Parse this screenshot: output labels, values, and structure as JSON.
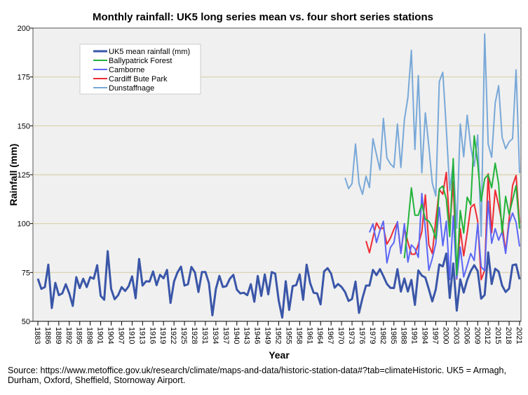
{
  "chart_data": {
    "type": "line",
    "title": "Monthly rainfall: UK5 long series mean vs. four short series stations",
    "xlabel": "Year",
    "ylabel": "Rainfall (mm)",
    "xlim": [
      1883,
      2021
    ],
    "ylim": [
      50,
      200
    ],
    "yticks": [
      50,
      75,
      100,
      125,
      150,
      175,
      200
    ],
    "xtick_start": 1883,
    "xtick_step": 3,
    "xtick_end": 2021,
    "grid": true,
    "legend_position": "top-left",
    "series": [
      {
        "name": "UK5 mean rainfall (mm)",
        "color": "#3a56a8",
        "start": 1883,
        "values": [
          71.8,
          66.6,
          67.5,
          79,
          56.8,
          69.7,
          63.4,
          64.3,
          69,
          64.3,
          57.9,
          72.6,
          67,
          71.8,
          67.5,
          72.6,
          71.8,
          78.7,
          63,
          61,
          85.9,
          66.6,
          61.3,
          63.4,
          67.5,
          65.5,
          67.9,
          73,
          61.8,
          81.9,
          68.3,
          70.5,
          70.4,
          75.5,
          68.5,
          73.8,
          72,
          76.3,
          59.4,
          70.4,
          75,
          78,
          68.3,
          69,
          77.8,
          75,
          65,
          75.2,
          75.2,
          69.6,
          53.1,
          66.6,
          73.2,
          67.6,
          68,
          71.8,
          73.8,
          66.2,
          64.3,
          64.6,
          63.4,
          69,
          60,
          73.2,
          63,
          74,
          63.8,
          75.2,
          74.4,
          60.6,
          51.9,
          70.5,
          55.8,
          68,
          68.5,
          74,
          61,
          79,
          69.6,
          64.6,
          64.3,
          58.7,
          75.5,
          77.2,
          74.4,
          67.2,
          69.1,
          67.6,
          65,
          60.4,
          61.4,
          70.3,
          54.3,
          62,
          68.3,
          68.3,
          76.3,
          73.6,
          76.7,
          73.1,
          69.1,
          67.1,
          67,
          76.7,
          65.2,
          71.9,
          65.2,
          71.2,
          58.4,
          76,
          73.4,
          72.4,
          66.4,
          60.2,
          66.4,
          79.1,
          78.1,
          84.7,
          62,
          79.6,
          55.5,
          71.5,
          64.7,
          71.2,
          75.7,
          78.7,
          75.7,
          61.6,
          63.5,
          85.3,
          69.1,
          76.9,
          75.5,
          68.3,
          65,
          66.8,
          78.7,
          79.1,
          71.5
        ]
      },
      {
        "name": "Ballypatrick Forest",
        "color": "#22b33a",
        "start": 1988,
        "values": [
          82.3,
          99.4,
          118.3,
          104.3,
          104.3,
          109.9,
          102.2,
          101.2,
          97.9,
          92.2,
          117.7,
          119.2,
          112.6,
          93.4,
          133.2,
          73.7,
          106.7,
          95.1,
          113.5,
          109.6,
          144.9,
          130.5,
          111.4,
          123,
          125,
          118.3,
          130.9,
          120.4,
          95.3,
          113.9,
          104.7,
          112.1,
          119.4,
          97.4
        ]
      },
      {
        "name": "Camborne",
        "color": "#5b66f5",
        "start": 1978,
        "values": [
          95.5,
          99.8,
          90.3,
          96.5,
          101.2,
          79.9,
          87.8,
          90.3,
          101,
          84.7,
          100,
          80.3,
          89.1,
          87.2,
          82.7,
          115.4,
          97.4,
          76.1,
          82.1,
          89.9,
          108.2,
          88.7,
          101.2,
          71.3,
          103.9,
          71.9,
          88,
          72.7,
          78.5,
          84.7,
          81.1,
          100,
          77.9,
          75.9,
          111.4,
          89.9,
          97.4,
          91.5,
          95.9,
          84.7,
          100,
          105.4,
          100.6,
          88.3
        ]
      },
      {
        "name": "Cardiff Bute Park",
        "color": "#ee2a33",
        "start": 1977,
        "values": [
          91.1,
          85.1,
          92.9,
          100.3,
          97.1,
          97.9,
          89.5,
          92.6,
          97.1,
          100.7,
          85.1,
          97.9,
          90.5,
          84.3,
          84.3,
          89.3,
          95.9,
          114.7,
          89.1,
          84.7,
          101.8,
          117.4,
          115,
          126.2,
          97.9,
          121.4,
          71.6,
          97.4,
          83.5,
          95.3,
          108.2,
          109.9,
          101.2,
          71.3,
          76.1,
          125.5,
          95.3,
          117.1,
          109.4,
          100,
          85.4,
          102.4,
          119.4,
          124.6,
          99.8
        ]
      },
      {
        "name": "Dunstaffnage",
        "color": "#78a8d8",
        "start": 1971,
        "values": [
          123.4,
          117.9,
          120.4,
          140.7,
          120.4,
          115,
          124.2,
          118.4,
          143.4,
          135.3,
          127.5,
          153.8,
          133.5,
          130.5,
          128.7,
          150.9,
          128.7,
          153.1,
          164.4,
          188.6,
          137.9,
          175.7,
          126,
          156.6,
          139.5,
          120.8,
          114.1,
          172.6,
          177.4,
          148.5,
          116.9,
          131.2,
          97.7,
          150.9,
          134.2,
          155.4,
          139.5,
          129.3,
          145.4,
          93.5,
          197,
          140.7,
          133.9,
          161.6,
          170.5,
          144.2,
          138.3,
          141.8,
          143.4,
          178.6,
          125.8
        ]
      }
    ]
  },
  "source_text": "Source: https://www.metoffice.gov.uk/research/climate/maps-and-data/historic-station-data#?tab=climateHistoric. UK5 = Armagh, Durham, Oxford, Sheffield, Stornoway Airport."
}
